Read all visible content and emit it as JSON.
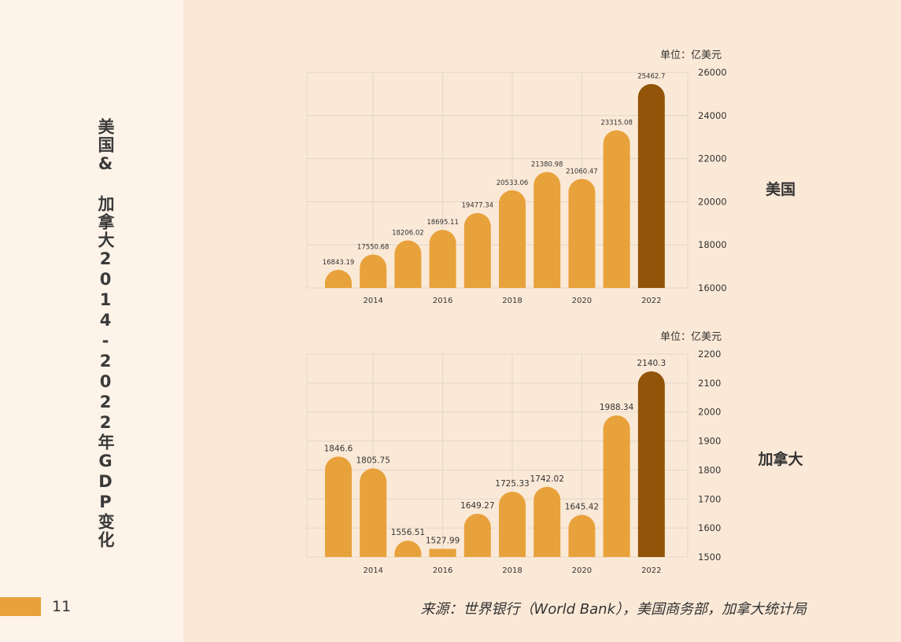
{
  "page_number": "11",
  "side_title": "美国& 加拿大2014-2022年GDP变化",
  "source": "来源：世界银行（World Bank），美国商务部，加拿大统计局",
  "colors": {
    "bar": "#e8a23b",
    "highlight": "#915408",
    "grid": "#e2d6c8"
  },
  "chart_data": [
    {
      "type": "bar",
      "country_label": "美国",
      "unit": "单位：亿美元",
      "x": [
        2013,
        2014,
        2015,
        2016,
        2017,
        2018,
        2019,
        2020,
        2021,
        2022
      ],
      "values": [
        16843.19,
        17550.68,
        18206.02,
        18695.11,
        19477.34,
        20533.06,
        21380.98,
        21060.47,
        23315.08,
        25462.7
      ],
      "value_labels": [
        "16843.19",
        "17550.68",
        "18206.02",
        "18695.11",
        "19477.34",
        "20533.06",
        "21380.98",
        "21060.47",
        "23315.08",
        "25462.7"
      ],
      "xtick_labels": [
        "2014",
        "2016",
        "2018",
        "2020",
        "2022"
      ],
      "yticks": [
        "26000",
        "24000",
        "22000",
        "20000",
        "18000",
        "16000"
      ],
      "ylim": [
        16000,
        26000
      ],
      "y_axis_side": "right",
      "grid": true
    },
    {
      "type": "bar",
      "country_label": "加拿大",
      "unit": "单位：亿美元",
      "x": [
        2013,
        2014,
        2015,
        2016,
        2017,
        2018,
        2019,
        2020,
        2021,
        2022
      ],
      "values": [
        1846.6,
        1805.75,
        1556.51,
        1527.99,
        1649.27,
        1725.33,
        1742.02,
        1645.42,
        1988.34,
        2140.3
      ],
      "value_labels": [
        "1846.6",
        "1805.75",
        "1556.51",
        "1527.99",
        "1649.27",
        "1725.33",
        "1742.02",
        "1645.42",
        "1988.34",
        "2140.3"
      ],
      "xtick_labels": [
        "2014",
        "2016",
        "2018",
        "2020",
        "2022"
      ],
      "yticks": [
        "2200",
        "2100",
        "2000",
        "1900",
        "1800",
        "1700",
        "1600",
        "1500"
      ],
      "ylim": [
        1500,
        2200
      ],
      "y_axis_side": "right",
      "grid": true
    }
  ]
}
